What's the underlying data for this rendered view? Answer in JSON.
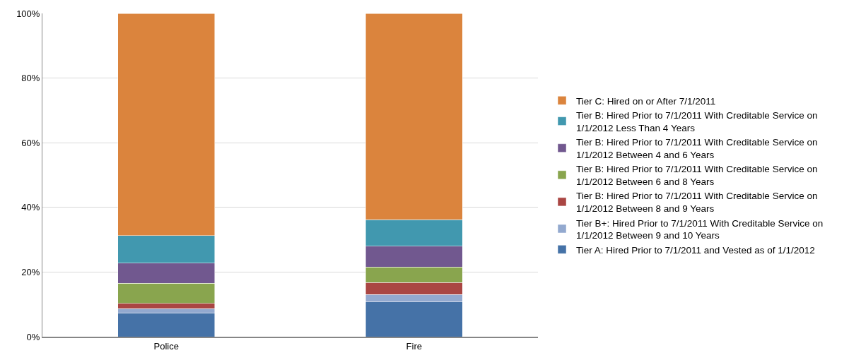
{
  "chart_data": {
    "type": "bar",
    "stacked": true,
    "categories": [
      "Police",
      "Fire"
    ],
    "series": [
      {
        "name": "Tier A: Hired Prior to 7/1/2011 and Vested as of 1/1/2012",
        "color": "#4572a7",
        "values": [
          7.3,
          10.7
        ]
      },
      {
        "name": "Tier B+: Hired Prior to 7/1/2011 With Creditable Service on 1/1/2012 Between 9 and 10 Years",
        "color": "#93a9cf",
        "values": [
          1.4,
          2.3
        ]
      },
      {
        "name": "Tier B: Hired Prior to 7/1/2011 With Creditable Service on 1/1/2012 Between 8 and 9 Years",
        "color": "#aa4643",
        "values": [
          1.6,
          3.8
        ]
      },
      {
        "name": "Tier B: Hired Prior to 7/1/2011 With Creditable Service on 1/1/2012 Between 6 and 8 Years",
        "color": "#89a54e",
        "values": [
          6.2,
          4.8
        ]
      },
      {
        "name": "Tier B: Hired Prior to 7/1/2011 With Creditable Service on 1/1/2012 Between 4 and 6 Years",
        "color": "#71588f",
        "values": [
          6.3,
          6.4
        ]
      },
      {
        "name": "Tier B: Hired Prior to 7/1/2011 With Creditable Service on 1/1/2012 Less Than 4 Years",
        "color": "#4198af",
        "values": [
          8.5,
          8.2
        ]
      },
      {
        "name": "Tier C: Hired on or After 7/1/2011",
        "color": "#db843d",
        "values": [
          68.7,
          63.8
        ]
      }
    ],
    "ylim": [
      0,
      100
    ],
    "yticks": [
      {
        "value": 0,
        "label": "0%"
      },
      {
        "value": 20,
        "label": "20%"
      },
      {
        "value": 40,
        "label": "40%"
      },
      {
        "value": 60,
        "label": "60%"
      },
      {
        "value": 80,
        "label": "80%"
      },
      {
        "value": 100,
        "label": "100%"
      }
    ],
    "grid": "y",
    "legend": "right"
  }
}
